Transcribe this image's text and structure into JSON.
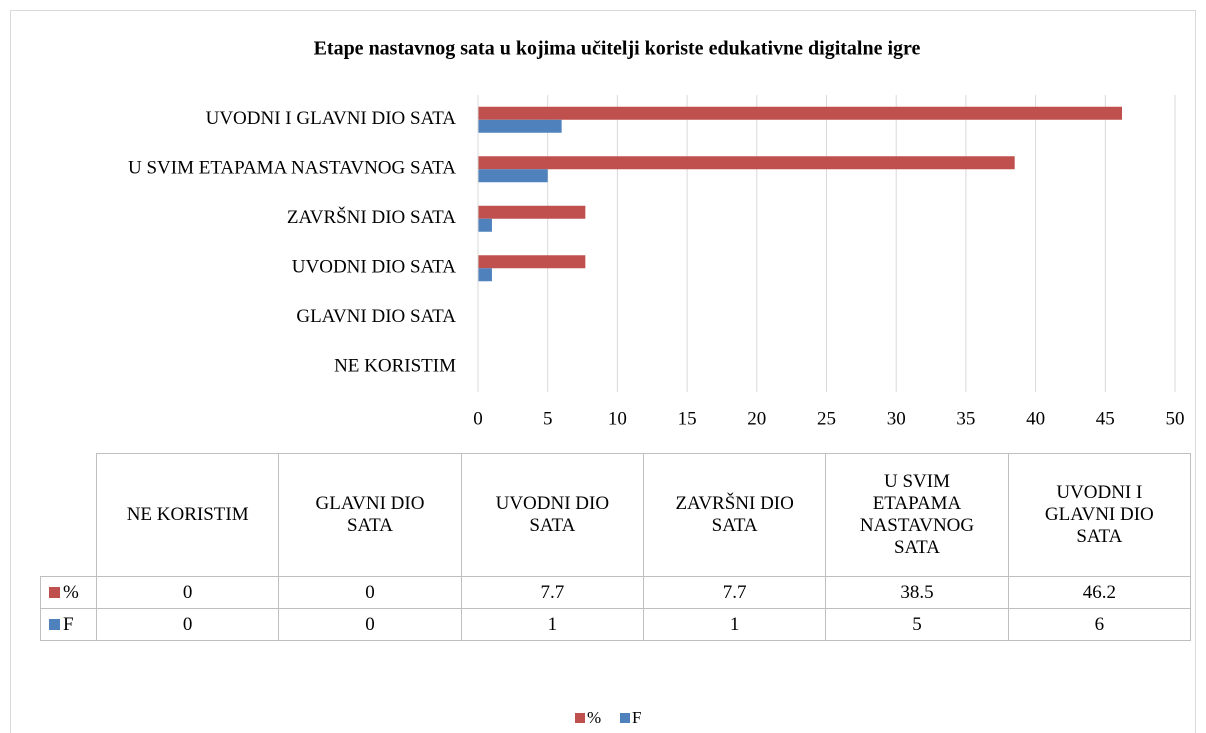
{
  "chart_data": {
    "type": "bar",
    "orientation": "horizontal",
    "title": "Etape nastavnog sata u kojima učitelji koriste edukativne digitalne igre",
    "categories": [
      "NE KORISTIM",
      "GLAVNI DIO SATA",
      "UVODNI DIO SATA",
      "ZAVRŠNI DIO SATA",
      "U SVIM ETAPAMA NASTAVNOG SATA",
      "UVODNI I GLAVNI DIO SATA"
    ],
    "series": [
      {
        "name": "%",
        "color": "#c0504d",
        "values": [
          0,
          0,
          7.7,
          7.7,
          38.5,
          46.2
        ]
      },
      {
        "name": "F",
        "color": "#4f81bd",
        "values": [
          0,
          0,
          1,
          1,
          5,
          6
        ]
      }
    ],
    "xlim": [
      0,
      50
    ],
    "xticks": [
      0,
      5,
      10,
      15,
      20,
      25,
      30,
      35,
      40,
      45,
      50
    ],
    "grid": true,
    "data_table": true,
    "legend": "bottom"
  }
}
